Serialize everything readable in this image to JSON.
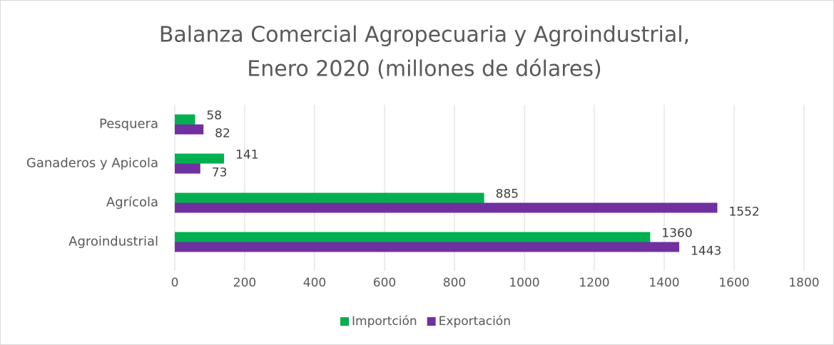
{
  "chart_data": {
    "type": "hbar",
    "title": [
      "Balanza Comercial Agropecuaria y Agroindustrial,",
      "Enero 2020 (millones de dólares)"
    ],
    "categories": [
      "Pesquera",
      "Ganaderos y Apicola",
      "Agrícola",
      "Agroindustrial"
    ],
    "series": [
      {
        "name": "Importción",
        "color": "#00b050",
        "values": [
          58,
          141,
          885,
          1360
        ]
      },
      {
        "name": "Exportación",
        "color": "#7030a0",
        "values": [
          82,
          73,
          1552,
          1443
        ]
      }
    ],
    "xlim": [
      0,
      1800
    ],
    "xticks": [
      0,
      200,
      400,
      600,
      800,
      1000,
      1200,
      1400,
      1600,
      1800
    ],
    "grid": true,
    "legend": "bottom"
  }
}
